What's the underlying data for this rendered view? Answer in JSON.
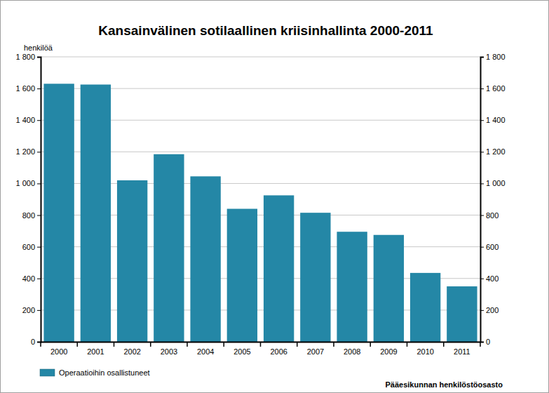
{
  "chart_data": {
    "type": "bar",
    "title": "Kansainvälinen sotilaallinen kriisinhallinta 2000-2011",
    "y_label": "henkilöä",
    "source": "Pääesikunnan henkilöstöosasto",
    "categories": [
      "2000",
      "2001",
      "2002",
      "2003",
      "2004",
      "2005",
      "2006",
      "2007",
      "2008",
      "2009",
      "2010",
      "2011"
    ],
    "series": [
      {
        "name": "Operaatioihin osallistuneet",
        "color": "#2487a6",
        "values": [
          1630,
          1625,
          1020,
          1185,
          1045,
          840,
          925,
          815,
          695,
          675,
          435,
          350
        ]
      }
    ],
    "ylim": [
      0,
      1800
    ],
    "yticks": [
      0,
      200,
      400,
      600,
      800,
      {
        "value": 1000,
        "label": "1 000"
      },
      {
        "value": 1200,
        "label": "1 200"
      },
      {
        "value": 1400,
        "label": "1 400"
      },
      {
        "value": 1600,
        "label": "1 600"
      },
      {
        "value": 1800,
        "label": "1 800"
      }
    ],
    "y2lim": [
      0,
      1800
    ],
    "y2ticks": [
      0,
      200,
      400,
      600,
      800,
      {
        "value": 1000,
        "label": "1 000"
      },
      {
        "value": 1200,
        "label": "1 200"
      },
      {
        "value": 1400,
        "label": "1 400"
      },
      {
        "value": 1600,
        "label": "1 600"
      },
      {
        "value": 1800,
        "label": "1 800"
      }
    ],
    "grid": true,
    "legend": "bottom"
  }
}
